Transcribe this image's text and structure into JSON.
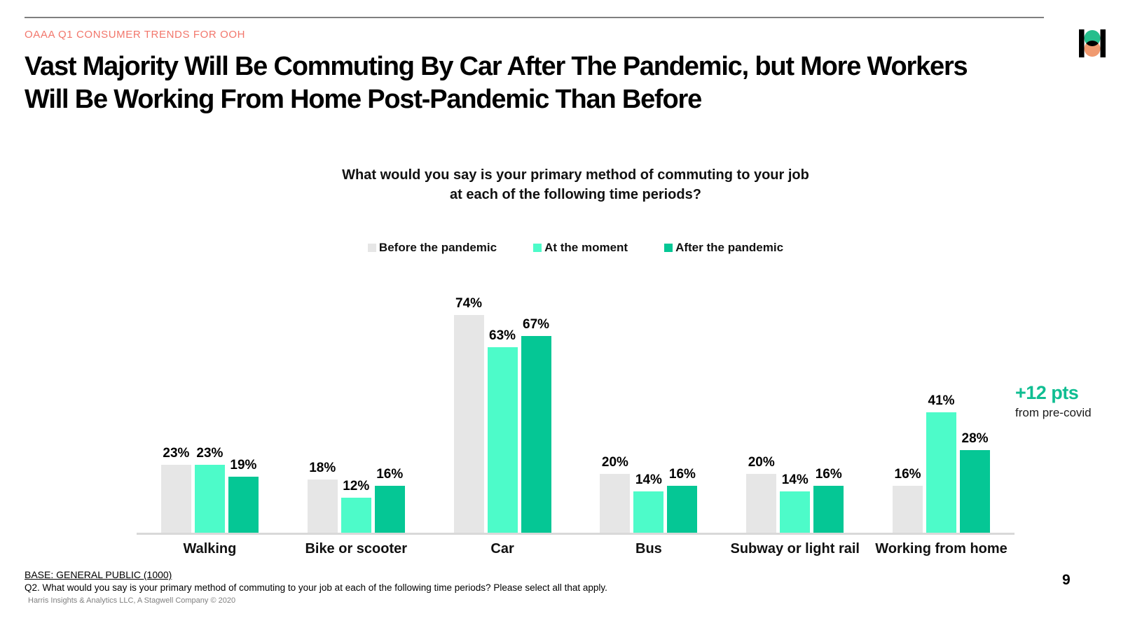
{
  "header": {
    "eyebrow": "OAAA Q1 CONSUMER TRENDS FOR OOH",
    "title_line1": "Vast Majority Will Be Commuting By Car After The Pandemic, but More Workers",
    "title_line2": "Will Be Working From Home Post-Pandemic Than Before",
    "logo": {
      "name": "harris-poll-logo",
      "bar_color": "#000000",
      "top_circle_color": "#26be8c",
      "bottom_circle_color": "#f09a70"
    }
  },
  "chart_data": {
    "type": "bar",
    "title_line1": "What would you say is your primary method of commuting to your job",
    "title_line2": "at each of the following time periods?",
    "categories": [
      "Walking",
      "Bike or scooter",
      "Car",
      "Bus",
      "Subway or light rail",
      "Working from home"
    ],
    "series": [
      {
        "name": "Before the pandemic",
        "color": "#e6e6e6",
        "values": [
          23,
          18,
          74,
          20,
          20,
          16
        ]
      },
      {
        "name": "At the moment",
        "color": "#4dfbc9",
        "values": [
          23,
          12,
          63,
          14,
          14,
          41
        ]
      },
      {
        "name": "After the pandemic",
        "color": "#05c795",
        "values": [
          19,
          16,
          67,
          16,
          16,
          28
        ]
      }
    ],
    "value_suffix": "%",
    "ylim": [
      0,
      80
    ],
    "grid": false,
    "legend_position": "top",
    "axis_color": "#d9d9d9",
    "annotation": {
      "headline": "+12 pts",
      "subtext": "from pre-covid",
      "color": "#0fbe92"
    }
  },
  "footer": {
    "base": "BASE: GENERAL PUBLIC (1000)",
    "question": "Q2. What would you say is your primary method of commuting to your job at each of the following time periods? Please select all that apply.",
    "source": "Harris Insights & Analytics LLC, A Stagwell Company © 2020",
    "page_number": "9"
  }
}
